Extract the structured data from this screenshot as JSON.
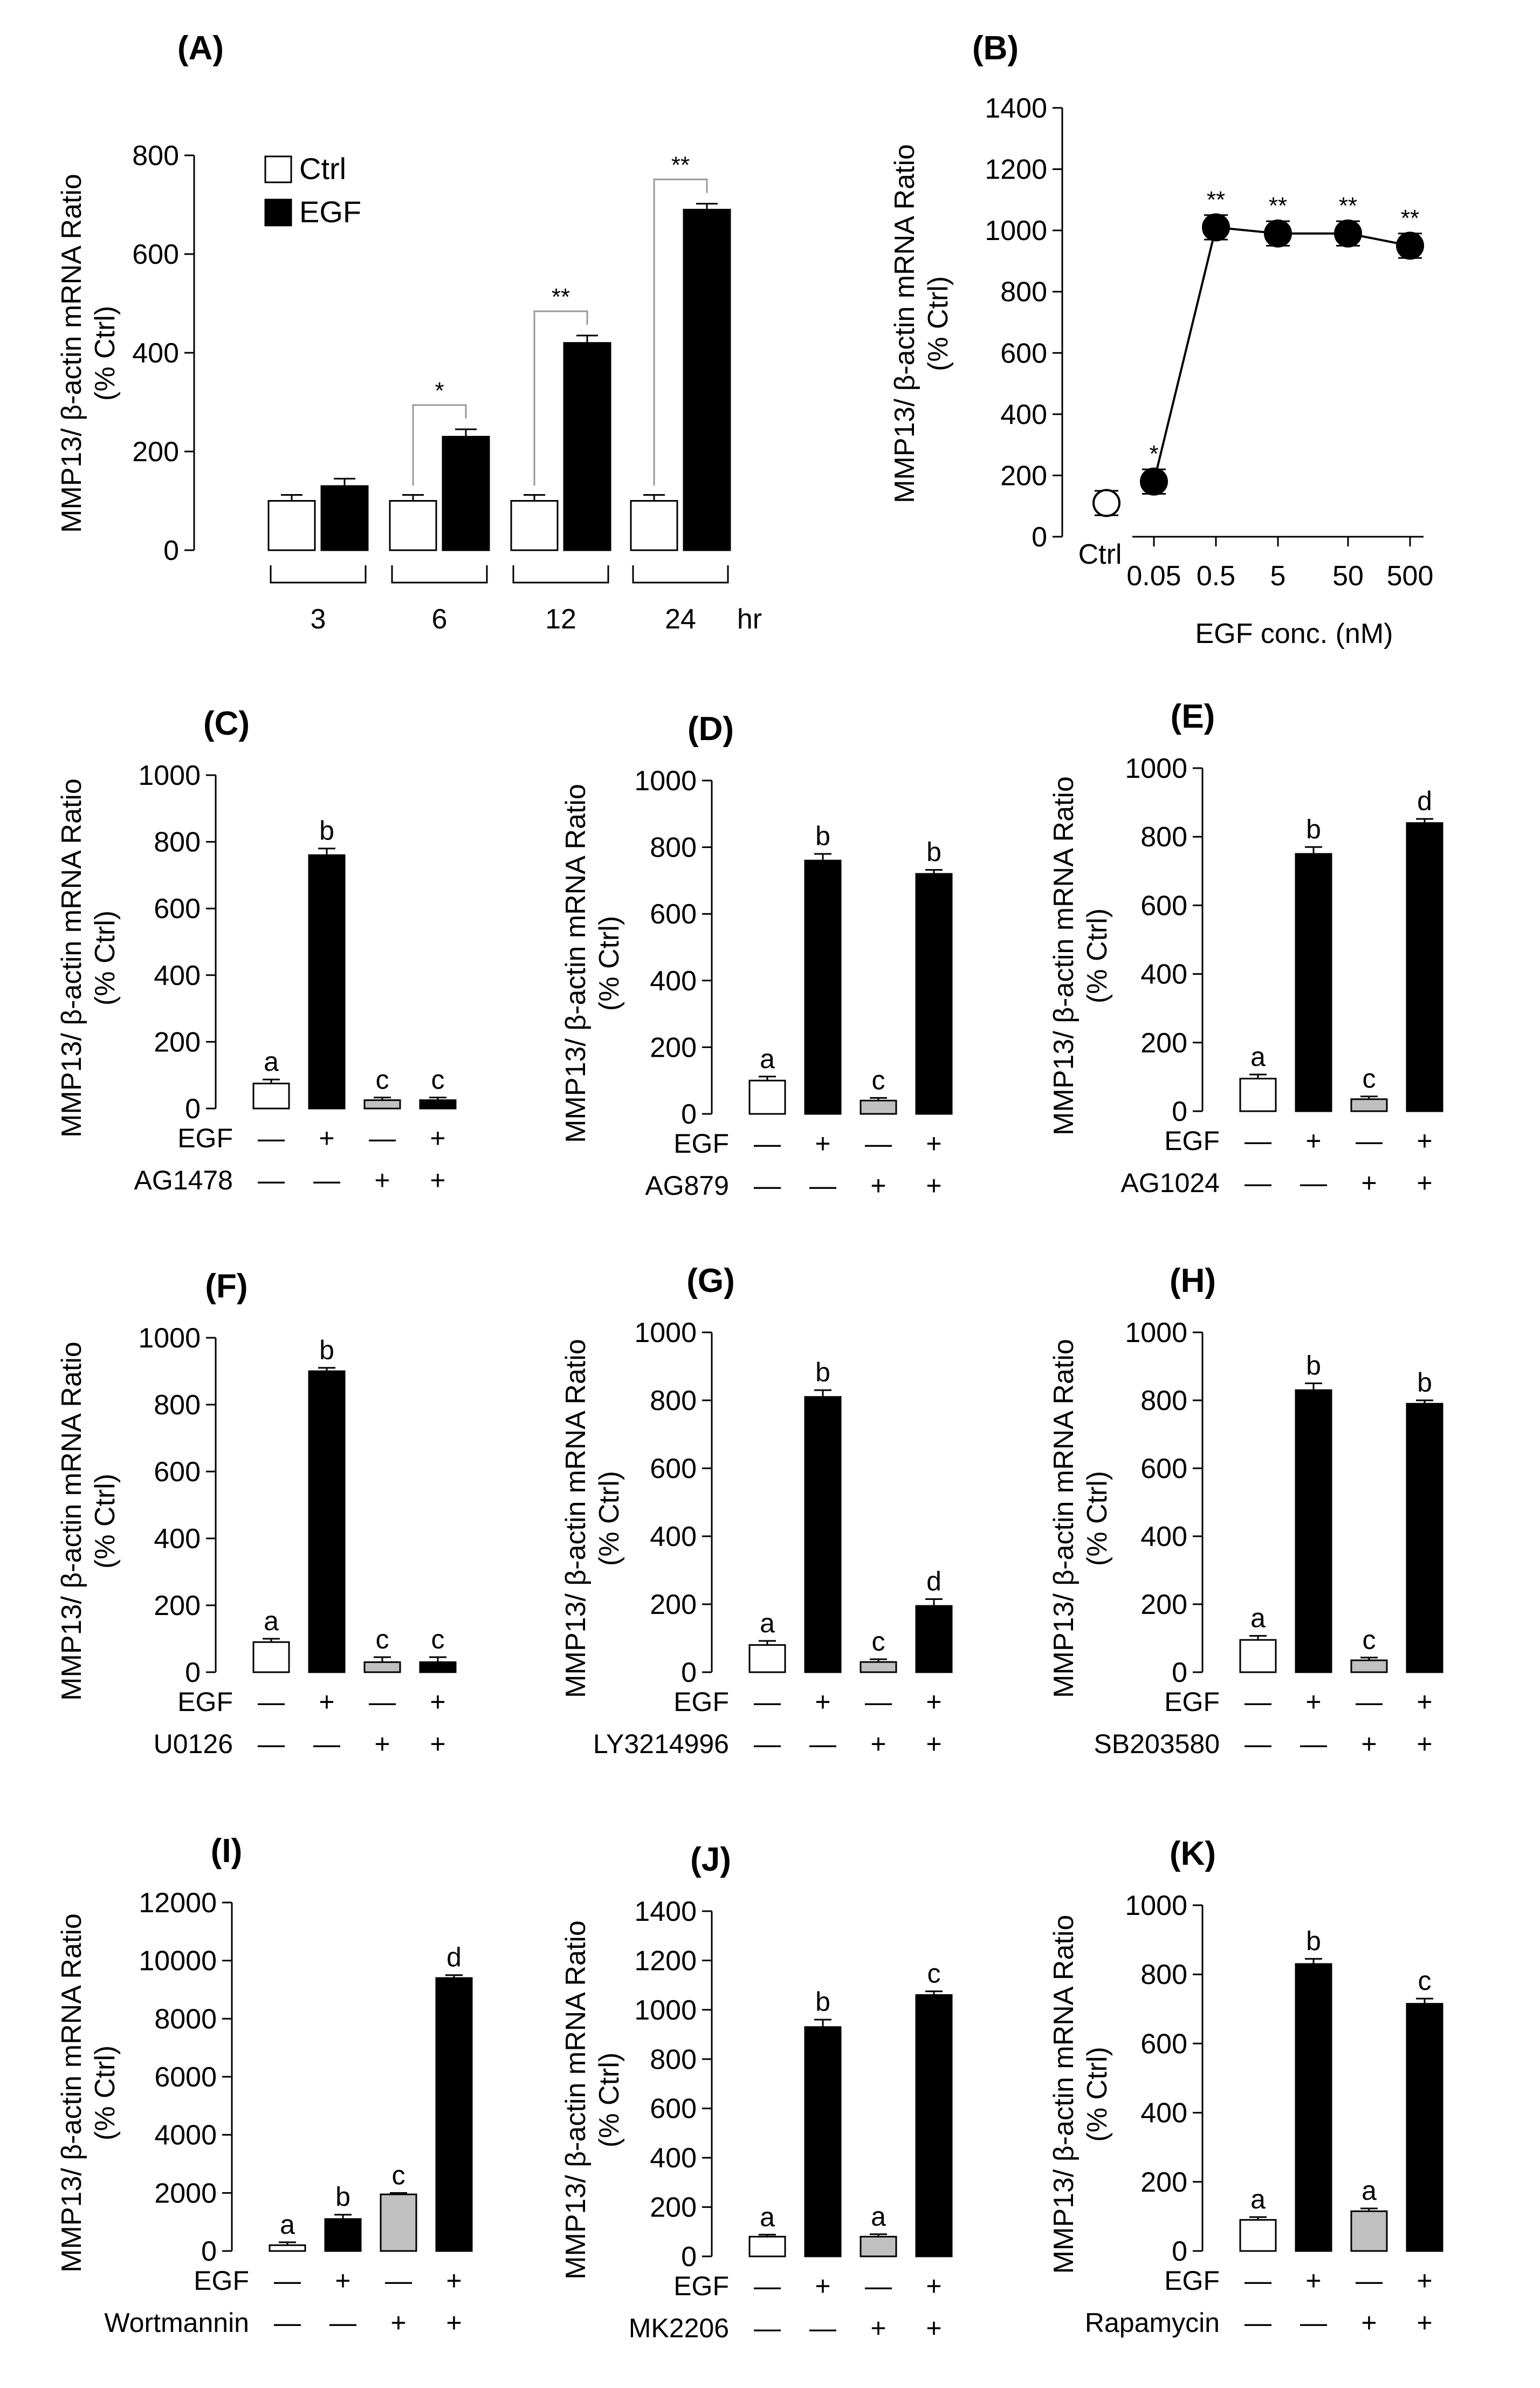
{
  "chart_data": [
    {
      "id": "A",
      "panel_label": "(A)",
      "type": "bar",
      "ylabel": "MMP13/ β-actin mRNA Ratio",
      "ylabel2": "(% Ctrl)",
      "yticks": [
        0,
        200,
        400,
        600,
        800
      ],
      "ylim": [
        0,
        800
      ],
      "categories": [
        "3",
        "6",
        "12",
        "24"
      ],
      "x_unit": "hr",
      "legend": [
        "Ctrl",
        "EGF"
      ],
      "series": [
        {
          "name": "Ctrl",
          "color": "#ffffff",
          "values": [
            100,
            100,
            100,
            100
          ],
          "errors": [
            12,
            12,
            12,
            12
          ]
        },
        {
          "name": "EGF",
          "color": "#000000",
          "values": [
            130,
            230,
            420,
            690
          ],
          "errors": [
            15,
            15,
            15,
            12
          ]
        }
      ],
      "significance": [
        "",
        "*",
        "**",
        "**"
      ]
    },
    {
      "id": "B",
      "panel_label": "(B)",
      "type": "scatter",
      "ylabel": "MMP13/ β-actin mRNA Ratio",
      "ylabel2": "(% Ctrl)",
      "yticks": [
        0,
        200,
        400,
        600,
        800,
        1000,
        1200,
        1400
      ],
      "ylim": [
        0,
        1400
      ],
      "xlabel": "EGF conc. (nM)",
      "x_labels": [
        "Ctrl",
        "0.05",
        "0.5",
        "5",
        "50",
        "500"
      ],
      "values": [
        110,
        180,
        1010,
        990,
        990,
        950
      ],
      "errors": [
        40,
        40,
        40,
        40,
        40,
        40
      ],
      "markers": [
        "open",
        "filled",
        "filled",
        "filled",
        "filled",
        "filled"
      ],
      "significance": [
        "",
        "*",
        "**",
        "**",
        "**",
        "**"
      ]
    },
    {
      "id": "C",
      "panel_label": "(C)",
      "type": "bar",
      "ylabel": "MMP13/ β-actin mRNA Ratio",
      "ylabel2": "(% Ctrl)",
      "yticks": [
        0,
        200,
        400,
        600,
        800,
        1000
      ],
      "ylim": [
        0,
        1000
      ],
      "values": [
        75,
        760,
        25,
        25
      ],
      "errors": [
        12,
        20,
        8,
        8
      ],
      "colors": [
        "#ffffff",
        "#000000",
        "#c0c0c0",
        "#000000"
      ],
      "letters": [
        "a",
        "b",
        "c",
        "c"
      ],
      "row1_label": "EGF",
      "row1": [
        "—",
        "+",
        "—",
        "+"
      ],
      "row2_label": "AG1478",
      "row2": [
        "—",
        "—",
        "+",
        "+"
      ]
    },
    {
      "id": "D",
      "panel_label": "(D)",
      "type": "bar",
      "ylabel": "MMP13/ β-actin mRNA Ratio",
      "ylabel2": "(% Ctrl)",
      "yticks": [
        0,
        200,
        400,
        600,
        800,
        1000
      ],
      "ylim": [
        0,
        1000
      ],
      "values": [
        100,
        760,
        40,
        720
      ],
      "errors": [
        12,
        20,
        8,
        12
      ],
      "colors": [
        "#ffffff",
        "#000000",
        "#c0c0c0",
        "#000000"
      ],
      "letters": [
        "a",
        "b",
        "c",
        "b"
      ],
      "row1_label": "EGF",
      "row1": [
        "—",
        "+",
        "—",
        "+"
      ],
      "row2_label": "AG879",
      "row2": [
        "—",
        "—",
        "+",
        "+"
      ]
    },
    {
      "id": "E",
      "panel_label": "(E)",
      "type": "bar",
      "ylabel": "MMP13/ β-actin mRNA Ratio",
      "ylabel2": "(% Ctrl)",
      "yticks": [
        0,
        200,
        400,
        600,
        800,
        1000
      ],
      "ylim": [
        0,
        1000
      ],
      "values": [
        95,
        750,
        35,
        840
      ],
      "errors": [
        12,
        20,
        8,
        12
      ],
      "colors": [
        "#ffffff",
        "#000000",
        "#c0c0c0",
        "#000000"
      ],
      "letters": [
        "a",
        "b",
        "c",
        "d"
      ],
      "row1_label": "EGF",
      "row1": [
        "—",
        "+",
        "—",
        "+"
      ],
      "row2_label": "AG1024",
      "row2": [
        "—",
        "—",
        "+",
        "+"
      ]
    },
    {
      "id": "F",
      "panel_label": "(F)",
      "type": "bar",
      "ylabel": "MMP13/ β-actin mRNA Ratio",
      "ylabel2": "(% Ctrl)",
      "yticks": [
        0,
        200,
        400,
        600,
        800,
        1000
      ],
      "ylim": [
        0,
        1000
      ],
      "values": [
        90,
        900,
        30,
        30
      ],
      "errors": [
        10,
        10,
        15,
        15
      ],
      "colors": [
        "#ffffff",
        "#000000",
        "#c0c0c0",
        "#000000"
      ],
      "letters": [
        "a",
        "b",
        "c",
        "c"
      ],
      "row1_label": "EGF",
      "row1": [
        "—",
        "+",
        "—",
        "+"
      ],
      "row2_label": "U0126",
      "row2": [
        "—",
        "—",
        "+",
        "+"
      ]
    },
    {
      "id": "G",
      "panel_label": "(G)",
      "type": "bar",
      "ylabel": "MMP13/ β-actin mRNA Ratio",
      "ylabel2": "(% Ctrl)",
      "yticks": [
        0,
        200,
        400,
        600,
        800,
        1000
      ],
      "ylim": [
        0,
        1000
      ],
      "values": [
        80,
        810,
        30,
        195
      ],
      "errors": [
        12,
        20,
        8,
        20
      ],
      "colors": [
        "#ffffff",
        "#000000",
        "#c0c0c0",
        "#000000"
      ],
      "letters": [
        "a",
        "b",
        "c",
        "d"
      ],
      "row1_label": "EGF",
      "row1": [
        "—",
        "+",
        "—",
        "+"
      ],
      "row2_label": "LY3214996",
      "row2": [
        "—",
        "—",
        "+",
        "+"
      ]
    },
    {
      "id": "H",
      "panel_label": "(H)",
      "type": "bar",
      "ylabel": "MMP13/ β-actin mRNA Ratio",
      "ylabel2": "(% Ctrl)",
      "yticks": [
        0,
        200,
        400,
        600,
        800,
        1000
      ],
      "ylim": [
        0,
        1000
      ],
      "values": [
        95,
        830,
        35,
        790
      ],
      "errors": [
        12,
        20,
        8,
        10
      ],
      "colors": [
        "#ffffff",
        "#000000",
        "#c0c0c0",
        "#000000"
      ],
      "letters": [
        "a",
        "b",
        "c",
        "b"
      ],
      "row1_label": "EGF",
      "row1": [
        "—",
        "+",
        "—",
        "+"
      ],
      "row2_label": "SB203580",
      "row2": [
        "—",
        "—",
        "+",
        "+"
      ]
    },
    {
      "id": "I",
      "panel_label": "(I)",
      "type": "bar",
      "ylabel": "MMP13/ β-actin mRNA Ratio",
      "ylabel2": "(% Ctrl)",
      "yticks": [
        0,
        2000,
        4000,
        6000,
        8000,
        10000,
        12000
      ],
      "ylim": [
        0,
        12000
      ],
      "values": [
        200,
        1100,
        1950,
        9400
      ],
      "errors": [
        100,
        150,
        50,
        100
      ],
      "colors": [
        "#ffffff",
        "#000000",
        "#c0c0c0",
        "#000000"
      ],
      "letters": [
        "a",
        "b",
        "c",
        "d"
      ],
      "row1_label": "EGF",
      "row1": [
        "—",
        "+",
        "—",
        "+"
      ],
      "row2_label": "Wortmannin",
      "row2": [
        "—",
        "—",
        "+",
        "+"
      ]
    },
    {
      "id": "J",
      "panel_label": "(J)",
      "type": "bar",
      "ylabel": "MMP13/ β-actin mRNA Ratio",
      "ylabel2": "(% Ctrl)",
      "yticks": [
        0,
        200,
        400,
        600,
        800,
        1000,
        1200,
        1400
      ],
      "ylim": [
        0,
        1400
      ],
      "values": [
        80,
        930,
        80,
        1060
      ],
      "errors": [
        8,
        30,
        10,
        15
      ],
      "colors": [
        "#ffffff",
        "#000000",
        "#c0c0c0",
        "#000000"
      ],
      "letters": [
        "a",
        "b",
        "a",
        "c"
      ],
      "row1_label": "EGF",
      "row1": [
        "—",
        "+",
        "—",
        "+"
      ],
      "row2_label": "MK2206",
      "row2": [
        "—",
        "—",
        "+",
        "+"
      ]
    },
    {
      "id": "K",
      "panel_label": "(K)",
      "type": "bar",
      "ylabel": "MMP13/ β-actin mRNA Ratio",
      "ylabel2": "(% Ctrl)",
      "yticks": [
        0,
        200,
        400,
        600,
        800,
        1000
      ],
      "ylim": [
        0,
        1000
      ],
      "values": [
        90,
        830,
        115,
        715
      ],
      "errors": [
        8,
        15,
        8,
        15
      ],
      "colors": [
        "#ffffff",
        "#000000",
        "#c0c0c0",
        "#000000"
      ],
      "letters": [
        "a",
        "b",
        "a",
        "c"
      ],
      "row1_label": "EGF",
      "row1": [
        "—",
        "+",
        "—",
        "+"
      ],
      "row2_label": "Rapamycin",
      "row2": [
        "—",
        "—",
        "+",
        "+"
      ]
    }
  ]
}
